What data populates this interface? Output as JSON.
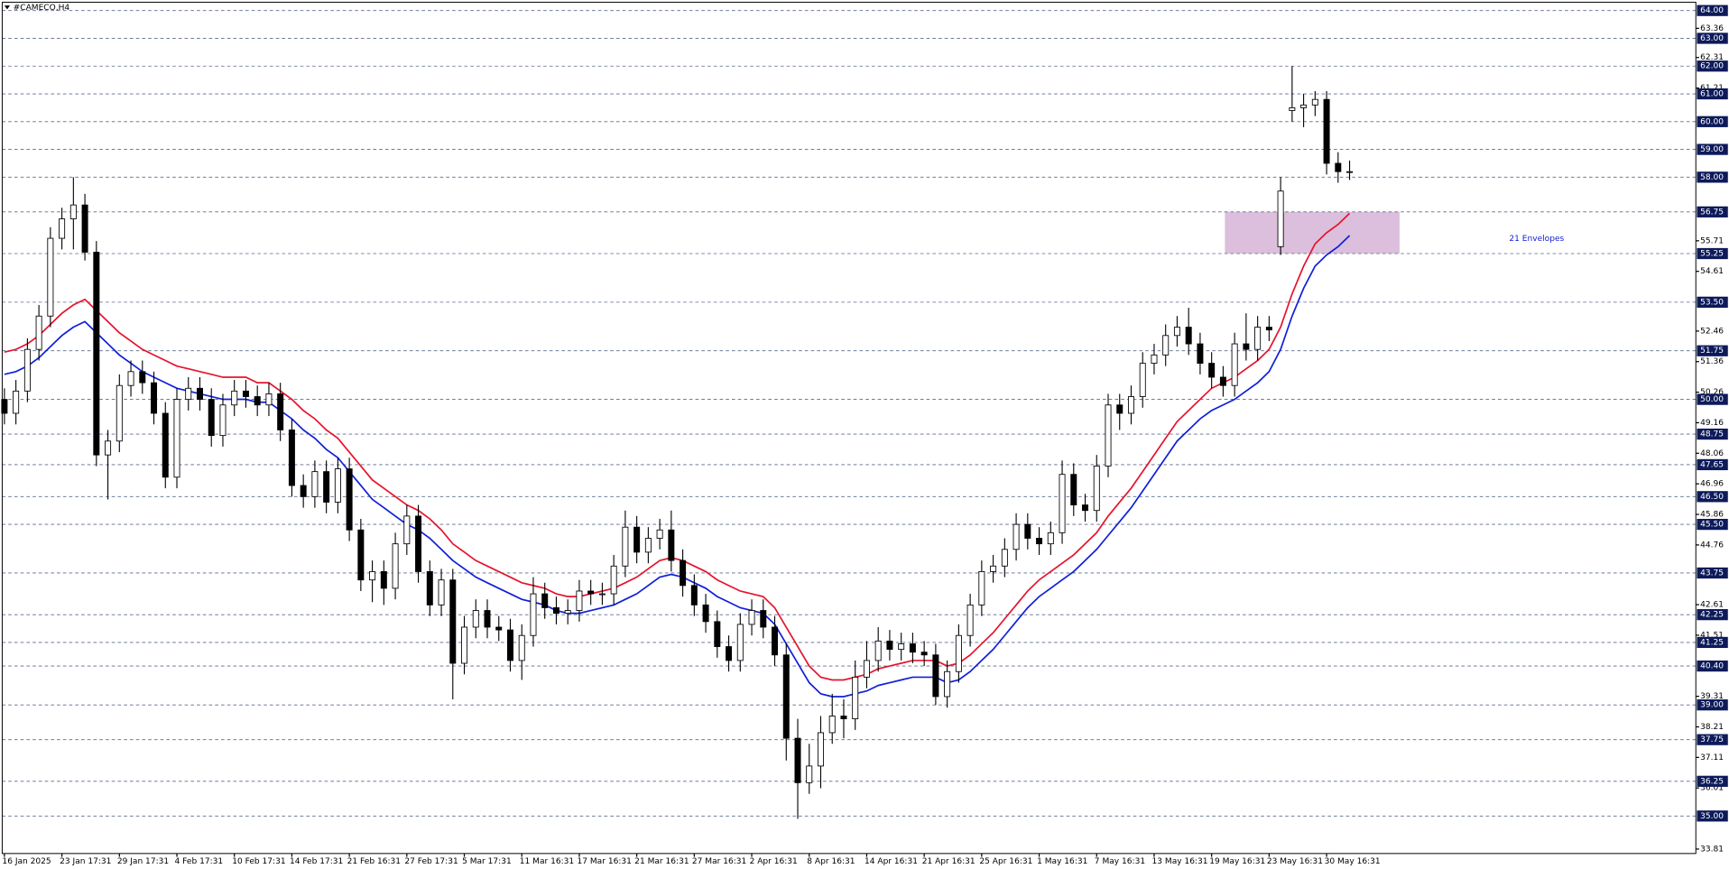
{
  "chart_data": {
    "type": "candlestick",
    "title": "#CAMECO,H4",
    "annotation": "21 Envelopes",
    "zone": {
      "ylim": [
        55.25,
        56.75
      ],
      "color": "#dcbfdc"
    },
    "up_color": "#ffffff",
    "down_color": "#000000",
    "wick_color": "#000000",
    "ylim": [
      33.65,
      64.3
    ],
    "levels": [
      {
        "value": 64,
        "label": "64.00"
      },
      {
        "value": 63,
        "label": "63.00"
      },
      {
        "value": 62,
        "label": "62.00"
      },
      {
        "value": 61,
        "label": "61.00"
      },
      {
        "value": 60,
        "label": "60.00"
      },
      {
        "value": 59,
        "label": "59.00"
      },
      {
        "value": 58,
        "label": "58.00"
      },
      {
        "value": 56.75,
        "label": "56.75"
      },
      {
        "value": 55.25,
        "label": "55.25"
      },
      {
        "value": 53.5,
        "label": "53.50"
      },
      {
        "value": 51.75,
        "label": "51.75"
      },
      {
        "value": 50,
        "label": "50.00"
      },
      {
        "value": 48.75,
        "label": "48.75"
      },
      {
        "value": 47.65,
        "label": "47.65"
      },
      {
        "value": 46.5,
        "label": "46.50"
      },
      {
        "value": 45.5,
        "label": "45.50"
      },
      {
        "value": 43.75,
        "label": "43.75"
      },
      {
        "value": 42.25,
        "label": "42.25"
      },
      {
        "value": 41.25,
        "label": "41.25"
      },
      {
        "value": 40.4,
        "label": "40.40"
      },
      {
        "value": 39,
        "label": "39.00"
      },
      {
        "value": 37.75,
        "label": "37.75"
      },
      {
        "value": 36.25,
        "label": "36.25"
      },
      {
        "value": 35,
        "label": "35.00"
      }
    ],
    "level_color": "#0d1a5a",
    "yticks": [
      63.36,
      62.31,
      61.21,
      55.71,
      54.61,
      52.46,
      51.36,
      50.26,
      49.16,
      48.06,
      46.96,
      45.86,
      44.76,
      42.61,
      41.51,
      39.31,
      38.21,
      37.11,
      36.01,
      33.81
    ],
    "categories": [
      "16 Jan 2025",
      null,
      null,
      null,
      null,
      "23 Jan 17:31",
      null,
      null,
      null,
      null,
      "29 Jan 17:31",
      null,
      null,
      null,
      null,
      "4 Feb 17:31",
      null,
      null,
      null,
      null,
      "10 Feb 17:31",
      null,
      null,
      null,
      null,
      "14 Feb 17:31",
      null,
      null,
      null,
      null,
      "21 Feb 16:31",
      null,
      null,
      null,
      null,
      "27 Feb 17:31",
      null,
      null,
      null,
      null,
      "5 Mar 17:31",
      null,
      null,
      null,
      null,
      "11 Mar 16:31",
      null,
      null,
      null,
      null,
      "17 Mar 16:31",
      null,
      null,
      null,
      null,
      "21 Mar 16:31",
      null,
      null,
      null,
      null,
      "27 Mar 16:31",
      null,
      null,
      null,
      null,
      "2 Apr 16:31",
      null,
      null,
      null,
      null,
      "8 Apr 16:31",
      null,
      null,
      null,
      null,
      "14 Apr 16:31",
      null,
      null,
      null,
      null,
      "21 Apr 16:31",
      null,
      null,
      null,
      null,
      "25 Apr 16:31",
      null,
      null,
      null,
      null,
      "1 May 16:31",
      null,
      null,
      null,
      null,
      "7 May 16:31",
      null,
      null,
      null,
      null,
      "13 May 16:31",
      null,
      null,
      null,
      null,
      "19 May 16:31",
      null,
      null,
      null,
      null,
      "23 May 16:31",
      null,
      null,
      null,
      null,
      "30 May 16:31",
      null,
      null
    ],
    "open": [
      50.0,
      49.5,
      50.3,
      51.8,
      53.0,
      55.8,
      56.5,
      57.0,
      55.3,
      48.0,
      48.5,
      50.5,
      51.0,
      50.6,
      49.5,
      47.2,
      50.0,
      50.4,
      50.0,
      48.7,
      49.8,
      50.3,
      50.1,
      49.8,
      50.2,
      48.9,
      46.9,
      46.5,
      47.4,
      46.3,
      47.5,
      45.3,
      43.5,
      43.8,
      43.2,
      44.8,
      45.8,
      43.8,
      42.6,
      43.5,
      40.5,
      41.8,
      42.4,
      41.8,
      41.7,
      40.6,
      41.5,
      43.0,
      42.5,
      42.3,
      42.4,
      43.1,
      43.0,
      43.0,
      44.0,
      45.4,
      44.5,
      45.0,
      45.3,
      44.2,
      43.3,
      42.6,
      42.0,
      41.1,
      40.6,
      41.9,
      42.4,
      41.8,
      40.8,
      37.8,
      36.2,
      36.8,
      38.0,
      38.6,
      38.5,
      40.0,
      40.6,
      41.3,
      41.0,
      41.2,
      40.9,
      40.8,
      39.3,
      40.2,
      41.5,
      42.6,
      43.8,
      44.0,
      44.6,
      45.5,
      45.0,
      44.8,
      45.2,
      47.3,
      46.2,
      46.0,
      47.6,
      49.8,
      49.5,
      50.1,
      51.3,
      51.6,
      52.3,
      52.6,
      52.0,
      51.3,
      50.8,
      50.5,
      52.0,
      51.8,
      52.6,
      55.5,
      60.4,
      60.5,
      60.6,
      60.8,
      58.5,
      58.2
    ],
    "high": [
      50.4,
      50.7,
      52.2,
      53.4,
      56.2,
      56.9,
      58.0,
      57.4,
      55.7,
      48.9,
      50.9,
      51.4,
      51.4,
      51.0,
      49.9,
      50.4,
      50.8,
      50.8,
      50.4,
      50.2,
      50.7,
      50.7,
      50.5,
      50.6,
      50.6,
      49.3,
      47.3,
      47.8,
      47.8,
      47.9,
      47.9,
      45.7,
      44.2,
      44.2,
      45.2,
      46.2,
      46.2,
      44.2,
      43.9,
      43.9,
      42.2,
      42.8,
      42.8,
      42.2,
      42.1,
      41.9,
      43.6,
      43.4,
      42.9,
      42.8,
      43.5,
      43.5,
      43.4,
      44.4,
      46.0,
      45.8,
      45.4,
      45.7,
      46.0,
      44.6,
      43.7,
      43.0,
      42.4,
      41.5,
      42.3,
      42.8,
      42.8,
      42.2,
      41.2,
      38.5,
      37.6,
      38.6,
      39.4,
      39.2,
      40.6,
      41.3,
      41.8,
      41.7,
      41.6,
      41.6,
      41.3,
      41.2,
      40.6,
      41.9,
      43.0,
      44.2,
      44.4,
      45.0,
      45.9,
      45.9,
      45.4,
      45.6,
      47.8,
      47.7,
      46.6,
      48.0,
      50.2,
      50.2,
      50.5,
      51.7,
      52.0,
      52.7,
      53.0,
      53.3,
      52.4,
      51.7,
      51.2,
      52.4,
      53.1,
      53.0,
      53.0,
      58.0,
      62.0,
      61.0,
      61.1,
      61.1,
      58.9,
      58.6
    ],
    "low": [
      49.1,
      49.1,
      49.9,
      51.4,
      52.6,
      55.4,
      55.4,
      55.0,
      47.6,
      46.4,
      48.1,
      50.1,
      50.2,
      49.1,
      46.8,
      46.8,
      49.6,
      49.6,
      48.3,
      48.3,
      49.4,
      49.7,
      49.4,
      49.4,
      48.5,
      46.5,
      46.1,
      46.1,
      45.9,
      45.9,
      44.9,
      43.1,
      42.7,
      42.6,
      42.8,
      44.4,
      43.4,
      42.2,
      42.2,
      39.2,
      40.1,
      41.4,
      41.4,
      41.3,
      40.2,
      39.9,
      41.1,
      42.1,
      41.9,
      41.9,
      42.0,
      42.6,
      42.6,
      42.6,
      43.6,
      44.1,
      44.1,
      44.6,
      43.8,
      42.9,
      42.2,
      41.6,
      40.7,
      40.2,
      40.2,
      41.5,
      41.4,
      40.4,
      37.0,
      34.9,
      35.8,
      36.0,
      37.6,
      37.8,
      38.1,
      39.6,
      40.2,
      40.6,
      40.6,
      40.5,
      40.4,
      39.0,
      38.9,
      39.8,
      41.1,
      42.2,
      43.4,
      43.6,
      44.2,
      44.6,
      44.4,
      44.4,
      44.8,
      45.8,
      45.6,
      45.6,
      47.2,
      48.9,
      49.1,
      49.7,
      50.9,
      51.2,
      51.9,
      51.6,
      50.9,
      50.4,
      50.1,
      50.1,
      51.4,
      51.4,
      52.1,
      55.2,
      60.0,
      59.8,
      60.2,
      58.1,
      57.8,
      57.9
    ],
    "close": [
      49.5,
      50.3,
      51.8,
      53.0,
      55.8,
      56.5,
      57.0,
      55.3,
      48.0,
      48.5,
      50.5,
      51.0,
      50.6,
      49.5,
      47.2,
      50.0,
      50.4,
      50.0,
      48.7,
      49.8,
      50.3,
      50.1,
      49.8,
      50.2,
      48.9,
      46.9,
      46.5,
      47.4,
      46.3,
      47.5,
      45.3,
      43.5,
      43.8,
      43.2,
      44.8,
      45.8,
      43.8,
      42.6,
      43.5,
      40.5,
      41.8,
      42.4,
      41.8,
      41.7,
      40.6,
      41.5,
      43.0,
      42.5,
      42.3,
      42.4,
      43.1,
      43.0,
      43.0,
      44.0,
      45.4,
      44.5,
      45.0,
      45.3,
      44.2,
      43.3,
      42.6,
      42.0,
      41.1,
      40.6,
      41.9,
      42.4,
      41.8,
      40.8,
      37.8,
      36.2,
      36.8,
      38.0,
      38.6,
      38.5,
      40.0,
      40.6,
      41.3,
      41.0,
      41.2,
      40.9,
      40.8,
      39.3,
      40.2,
      41.5,
      42.6,
      43.8,
      44.0,
      44.6,
      45.5,
      45.0,
      44.8,
      45.2,
      47.3,
      46.2,
      46.0,
      47.6,
      49.8,
      49.5,
      50.1,
      51.3,
      51.6,
      52.3,
      52.6,
      52.0,
      51.3,
      50.8,
      50.5,
      52.0,
      51.8,
      52.6,
      52.5,
      57.5,
      60.5,
      60.6,
      60.8,
      58.5,
      58.2,
      58.2
    ],
    "envelopes": {
      "upper": {
        "color": "#e5142e",
        "values": [
          51.7,
          51.8,
          52.0,
          52.3,
          52.7,
          53.1,
          53.4,
          53.6,
          53.2,
          52.8,
          52.4,
          52.1,
          51.8,
          51.6,
          51.4,
          51.2,
          51.1,
          51.0,
          50.9,
          50.8,
          50.8,
          50.8,
          50.6,
          50.6,
          50.3,
          50.0,
          49.6,
          49.3,
          48.9,
          48.6,
          48.1,
          47.6,
          47.1,
          46.8,
          46.5,
          46.2,
          46.0,
          45.7,
          45.3,
          44.8,
          44.5,
          44.2,
          44.0,
          43.8,
          43.6,
          43.4,
          43.3,
          43.2,
          43.0,
          42.9,
          42.9,
          43.0,
          43.1,
          43.2,
          43.4,
          43.6,
          43.9,
          44.2,
          44.3,
          44.2,
          44.0,
          43.8,
          43.5,
          43.3,
          43.1,
          43.0,
          42.9,
          42.5,
          41.8,
          41.1,
          40.4,
          40.0,
          39.9,
          39.9,
          40.0,
          40.1,
          40.3,
          40.4,
          40.5,
          40.6,
          40.6,
          40.6,
          40.4,
          40.5,
          40.8,
          41.2,
          41.6,
          42.1,
          42.6,
          43.1,
          43.5,
          43.8,
          44.1,
          44.4,
          44.8,
          45.2,
          45.8,
          46.3,
          46.8,
          47.4,
          48.0,
          48.6,
          49.2,
          49.6,
          50.0,
          50.4,
          50.6,
          50.8,
          51.1,
          51.4,
          51.8,
          52.6,
          53.8,
          54.8,
          55.6,
          56.0,
          56.3,
          56.7
        ]
      },
      "lower": {
        "color": "#1020d8",
        "values": [
          50.9,
          51.0,
          51.2,
          51.5,
          51.9,
          52.3,
          52.6,
          52.8,
          52.4,
          52.0,
          51.6,
          51.3,
          51.0,
          50.8,
          50.6,
          50.4,
          50.3,
          50.2,
          50.1,
          50.0,
          50.0,
          50.0,
          49.9,
          49.9,
          49.6,
          49.3,
          48.9,
          48.6,
          48.2,
          47.9,
          47.4,
          46.9,
          46.4,
          46.1,
          45.8,
          45.5,
          45.3,
          45.0,
          44.6,
          44.2,
          43.9,
          43.6,
          43.4,
          43.2,
          43.0,
          42.8,
          42.7,
          42.6,
          42.4,
          42.3,
          42.3,
          42.4,
          42.5,
          42.6,
          42.8,
          43.0,
          43.3,
          43.6,
          43.7,
          43.6,
          43.4,
          43.2,
          42.9,
          42.7,
          42.5,
          42.4,
          42.3,
          41.9,
          41.2,
          40.5,
          39.8,
          39.4,
          39.3,
          39.3,
          39.4,
          39.5,
          39.7,
          39.8,
          39.9,
          40.0,
          40.0,
          40.0,
          39.8,
          39.9,
          40.2,
          40.6,
          41.0,
          41.5,
          42.0,
          42.5,
          42.9,
          43.2,
          43.5,
          43.8,
          44.2,
          44.6,
          45.1,
          45.6,
          46.1,
          46.7,
          47.3,
          47.9,
          48.5,
          48.9,
          49.3,
          49.6,
          49.8,
          50.0,
          50.3,
          50.6,
          51.0,
          51.8,
          53.0,
          54.0,
          54.8,
          55.2,
          55.5,
          55.9
        ]
      }
    }
  }
}
